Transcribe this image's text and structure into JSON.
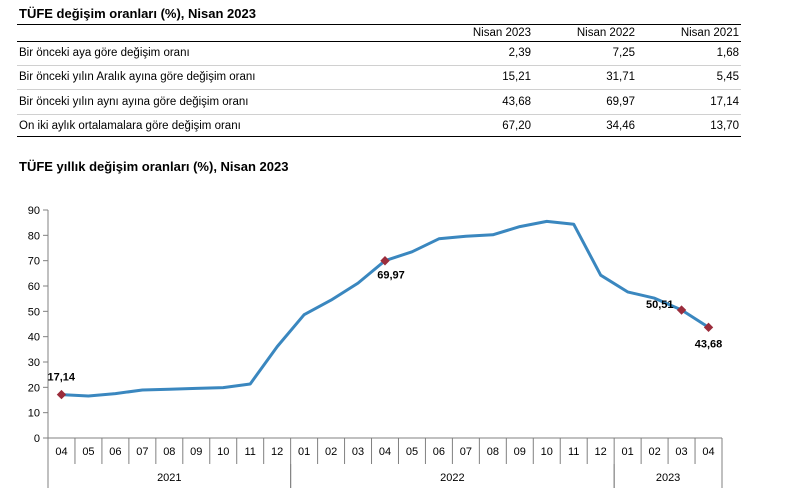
{
  "table": {
    "title": "TÜFE değişim oranları (%), Nisan 2023",
    "columns": [
      "Nisan 2023",
      "Nisan 2022",
      "Nisan 2021"
    ],
    "rows": [
      {
        "label": "Bir önceki aya göre değişim oranı",
        "values": [
          "2,39",
          "7,25",
          "1,68"
        ]
      },
      {
        "label": "Bir önceki yılın Aralık ayına göre değişim oranı",
        "values": [
          "15,21",
          "31,71",
          "5,45"
        ]
      },
      {
        "label": "Bir önceki yılın aynı ayına göre değişim oranı",
        "values": [
          "43,68",
          "69,97",
          "17,14"
        ]
      },
      {
        "label": "On iki aylık ortalamalara göre değişim oranı",
        "values": [
          "67,20",
          "34,46",
          "13,70"
        ]
      }
    ]
  },
  "colors": {
    "line": "#3a87bf",
    "marker": "#9b2d3c",
    "axis": "#808080"
  },
  "chart_data": {
    "type": "line",
    "title": "TÜFE yıllık değişim oranları (%), Nisan 2023",
    "xlabel": "",
    "ylabel": "",
    "ylim": [
      0,
      90
    ],
    "yticks": [
      0,
      10,
      20,
      30,
      40,
      50,
      60,
      70,
      80,
      90
    ],
    "grid": false,
    "categories": [
      "04",
      "05",
      "06",
      "07",
      "08",
      "09",
      "10",
      "11",
      "12",
      "01",
      "02",
      "03",
      "04",
      "05",
      "06",
      "07",
      "08",
      "09",
      "10",
      "11",
      "12",
      "01",
      "02",
      "03",
      "04"
    ],
    "year_groups": [
      {
        "label": "2021",
        "start": 0,
        "end": 8
      },
      {
        "label": "2022",
        "start": 9,
        "end": 20
      },
      {
        "label": "2023",
        "start": 21,
        "end": 24
      }
    ],
    "series": [
      {
        "values": [
          17.14,
          16.59,
          17.53,
          18.95,
          19.25,
          19.58,
          19.89,
          21.31,
          36.08,
          48.69,
          54.44,
          61.14,
          69.97,
          73.5,
          78.62,
          79.6,
          80.21,
          83.45,
          85.51,
          84.39,
          64.27,
          57.68,
          55.18,
          50.51,
          43.68
        ]
      }
    ],
    "data_labels": [
      {
        "index": 0,
        "text": "17,14"
      },
      {
        "index": 12,
        "text": "69,97"
      },
      {
        "index": 23,
        "text": "50,51"
      },
      {
        "index": 24,
        "text": "43,68"
      }
    ]
  }
}
